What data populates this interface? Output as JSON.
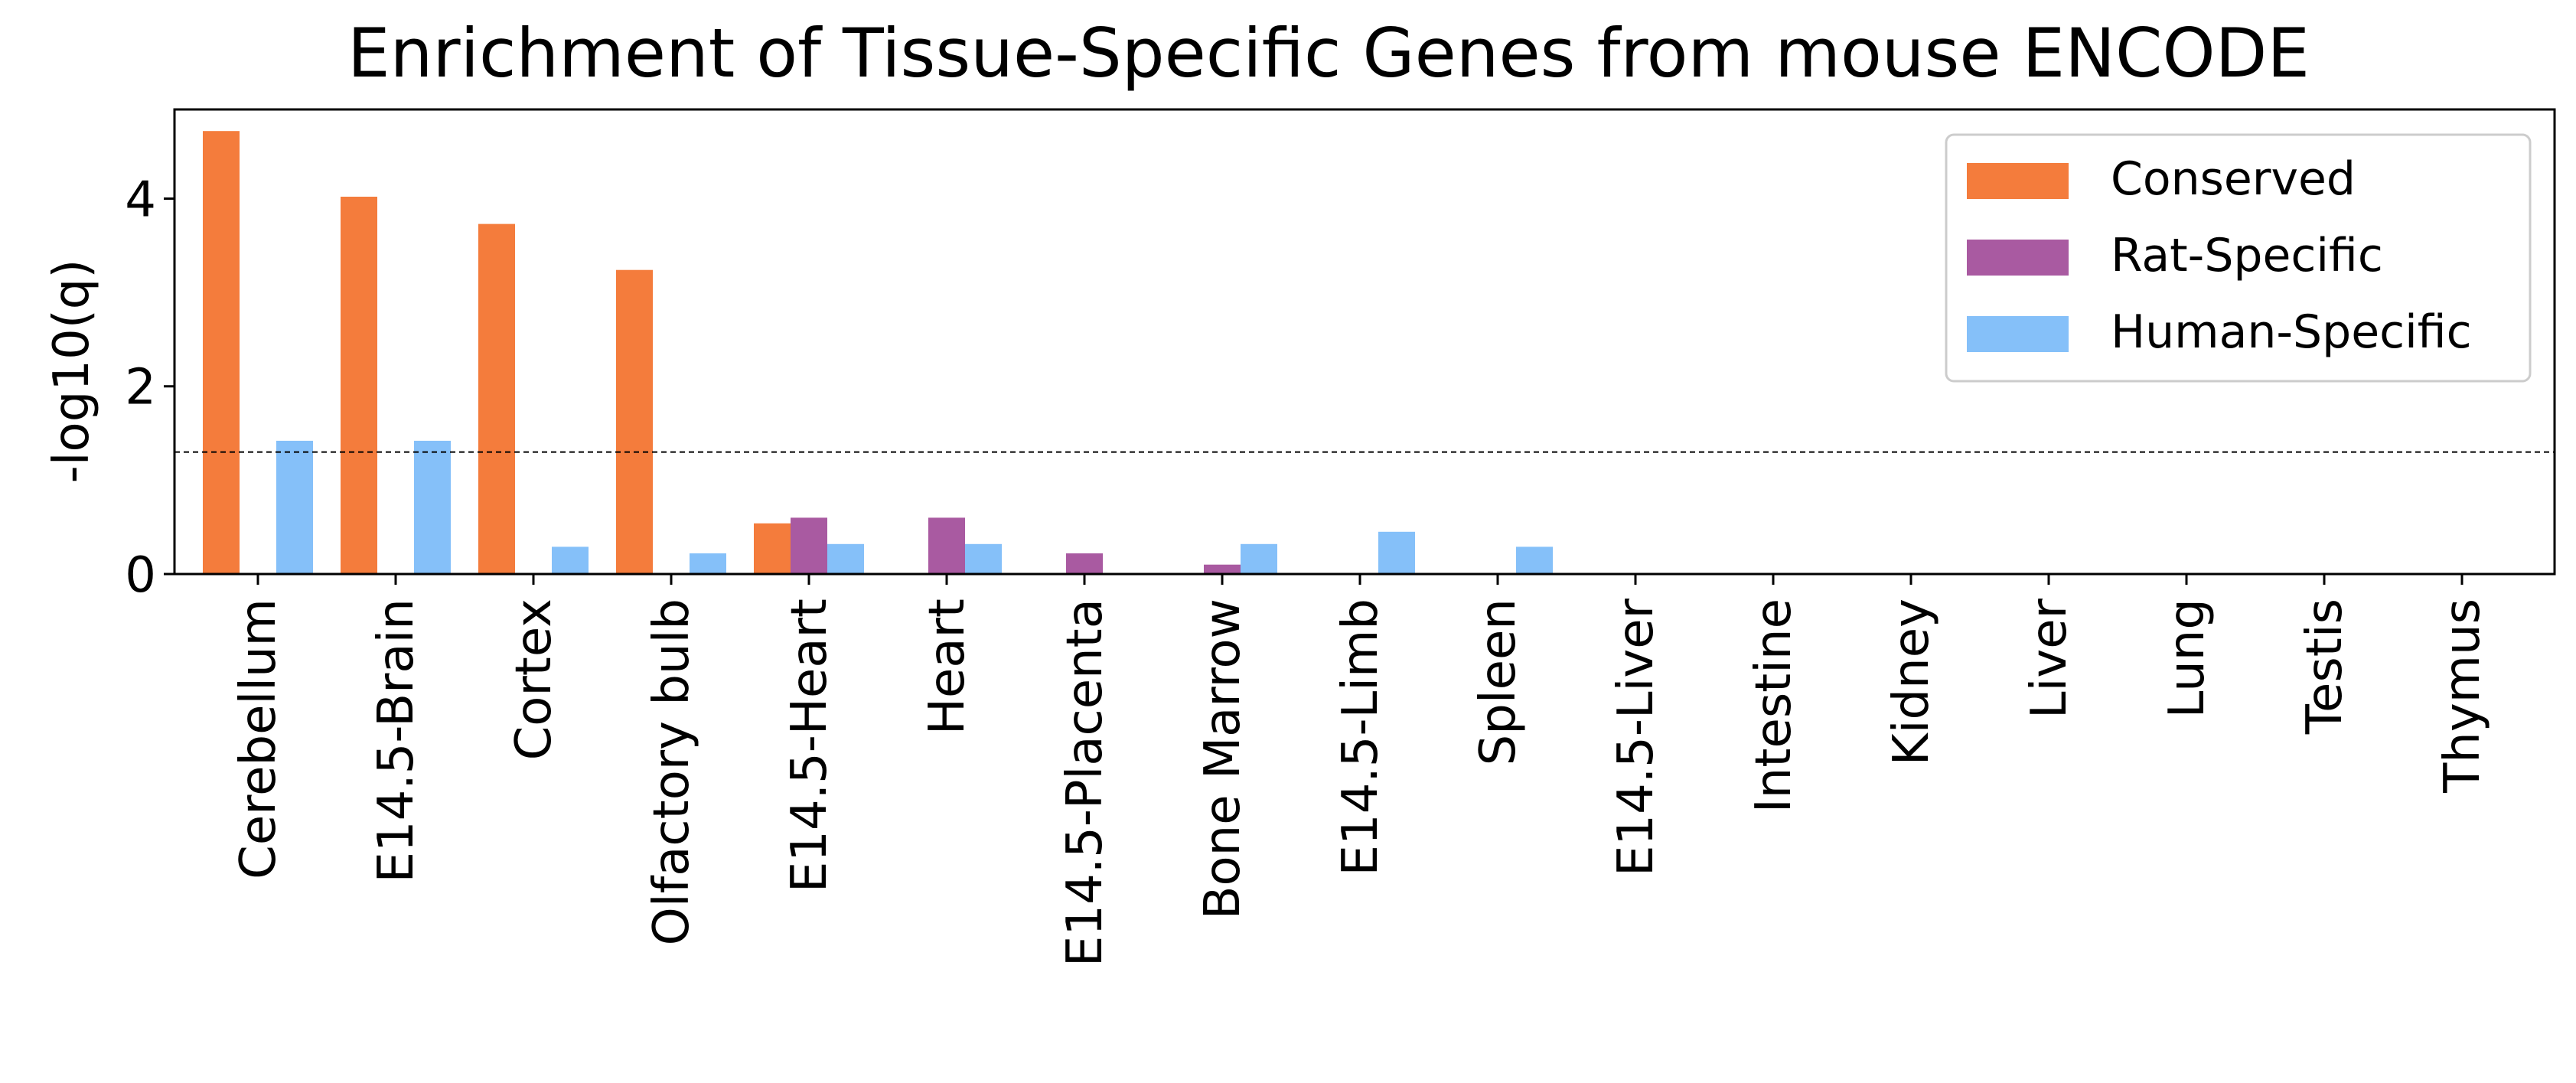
{
  "chart_data": {
    "type": "bar",
    "title": "Enrichment of Tissue-Specific Genes from mouse ENCODE",
    "xlabel": "",
    "ylabel": "-log10(q)",
    "ylim": [
      0,
      4.95
    ],
    "yticks": [
      "0",
      "2",
      "4"
    ],
    "grid": false,
    "legend_position": "top-right",
    "categories": [
      "Cerebellum",
      "E14.5-Brain",
      "Cortex",
      "Olfactory bulb",
      "E14.5-Heart",
      "Heart",
      "E14.5-Placenta",
      "Bone Marrow",
      "E14.5-Limb",
      "Spleen",
      "E14.5-Liver",
      "Intestine",
      "Kidney",
      "Liver",
      "Lung",
      "Testis",
      "Thymus"
    ],
    "series": [
      {
        "name": "Conserved",
        "color": "#f47c3c",
        "values": [
          4.72,
          4.02,
          3.73,
          3.24,
          0.54,
          0,
          0,
          0,
          0,
          0,
          0,
          0,
          0,
          0,
          0,
          0,
          0
        ]
      },
      {
        "name": "Rat-Specific",
        "color": "#a95aa1",
        "values": [
          0,
          0,
          0,
          0,
          0.6,
          0.6,
          0.22,
          0.1,
          0,
          0,
          0,
          0,
          0,
          0,
          0,
          0,
          0
        ]
      },
      {
        "name": "Human-Specific",
        "color": "#85c0f9",
        "values": [
          1.42,
          1.42,
          0.29,
          0.22,
          0.32,
          0.32,
          0,
          0.32,
          0.45,
          0.29,
          0,
          0,
          0,
          0,
          0,
          0,
          0
        ]
      }
    ],
    "reference_line": {
      "y": 1.3,
      "style": "dashed"
    }
  }
}
